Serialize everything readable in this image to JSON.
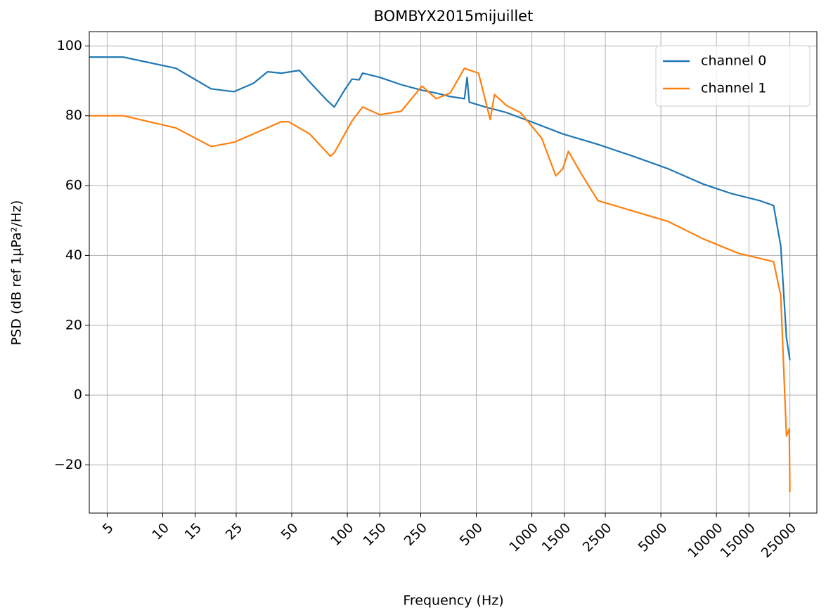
{
  "chart_data": {
    "type": "line",
    "title": "BOMBYX2015mijuillet",
    "xlabel": "Frequency (Hz)",
    "ylabel": "PSD (dB ref 1µPa²/Hz)",
    "xscale": "log",
    "xlim": [
      4.0,
      35000
    ],
    "ylim": [
      -33.8,
      104.1
    ],
    "xticks": [
      5,
      10,
      15,
      25,
      50,
      100,
      150,
      250,
      500,
      1000,
      1500,
      2500,
      5000,
      10000,
      15000,
      25000
    ],
    "yticks": [
      {
        "value": -20,
        "label": "−20"
      },
      0,
      20,
      40,
      60,
      80,
      100
    ],
    "grid": true,
    "legend": "upper right",
    "series": [
      {
        "name": "channel 0",
        "color": "#1f77b4",
        "x": [
          4.02,
          6.12,
          11.8,
          18.3,
          24.3,
          31,
          37,
          44,
          55,
          62.5,
          78,
          85,
          97,
          106,
          116,
          121,
          150,
          196,
          254,
          303,
          361,
          431,
          446,
          458,
          561,
          730,
          1036,
          1471,
          2280,
          3539,
          5485,
          8506,
          12080,
          17140,
          20400,
          22310,
          23950,
          25000
        ],
        "values": [
          96.8,
          96.8,
          93.6,
          87.7,
          86.9,
          89.3,
          92.6,
          92.2,
          93,
          89.7,
          84.3,
          82.5,
          87.5,
          90.5,
          90.3,
          92.2,
          91,
          88.9,
          87.3,
          86.5,
          85.5,
          84.9,
          91,
          83.9,
          82.5,
          80.9,
          77.9,
          74.8,
          71.8,
          68.4,
          64.8,
          60.4,
          57.7,
          55.7,
          54.3,
          42.7,
          16.5,
          10
        ]
      },
      {
        "name": "channel 1",
        "color": "#ff7f0e",
        "x": [
          4.02,
          6.12,
          11.8,
          18.3,
          24.3,
          31,
          44,
          48,
          62.5,
          81,
          85,
          106,
          121,
          150,
          196,
          254,
          303,
          361,
          431,
          514,
          595,
          627,
          730,
          869,
          1130,
          1348,
          1471,
          1578,
          1832,
          2280,
          3539,
          5485,
          8506,
          13180,
          20400,
          22310,
          23950,
          24800,
          25000
        ],
        "values": [
          80,
          80,
          76.5,
          71.2,
          72.4,
          74.8,
          78.3,
          78.3,
          74.8,
          68.4,
          69.4,
          78.5,
          82.5,
          80.3,
          81.3,
          88.5,
          84.9,
          86.5,
          93.6,
          92.2,
          78.9,
          86.1,
          82.9,
          80.9,
          73.6,
          62.8,
          64.8,
          69.8,
          63.8,
          55.7,
          52.7,
          49.7,
          44.7,
          40.6,
          38.2,
          28.5,
          -11.7,
          -9.7,
          -27.8
        ]
      }
    ]
  }
}
